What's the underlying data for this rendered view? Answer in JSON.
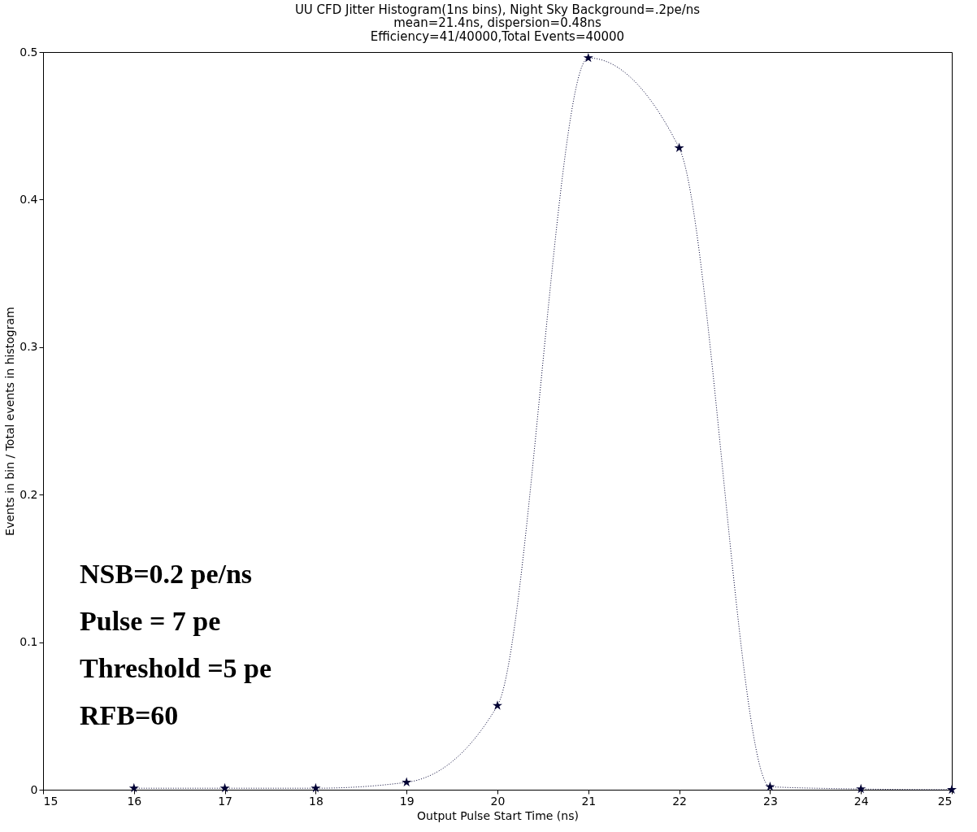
{
  "chart_data": {
    "type": "line",
    "title": "UU CFD Jitter Histogram(1ns bins), Night Sky Background=.2pe/ns",
    "subtitle": "mean=21.4ns, dispersion=0.48ns\nEfficiency=41/40000,Total Events=40000",
    "xlabel": "Output Pulse Start Time (ns)",
    "ylabel": "Events in bin / Total events in histogram",
    "x": [
      16,
      17,
      18,
      19,
      20,
      21,
      22,
      23,
      24,
      25
    ],
    "series": [
      {
        "color": "#000033",
        "values": [
          0.001,
          0.001,
          0.001,
          0.005,
          0.057,
          0.496,
          0.435,
          0.002,
          0.0005,
          0
        ]
      }
    ],
    "xlim": [
      15,
      25
    ],
    "xticks": [
      15,
      16,
      17,
      18,
      19,
      20,
      21,
      22,
      23,
      24,
      25
    ],
    "ylim": [
      0,
      0.5
    ],
    "yticks": [
      0,
      0.1,
      0.2,
      0.3,
      0.4,
      0.5
    ],
    "annotations": [
      "NSB=0.2 pe/ns",
      "Pulse = 7 pe",
      "Threshold =5 pe",
      "RFB=60"
    ],
    "marker": "star",
    "line_style": "dotted",
    "grid": false
  }
}
